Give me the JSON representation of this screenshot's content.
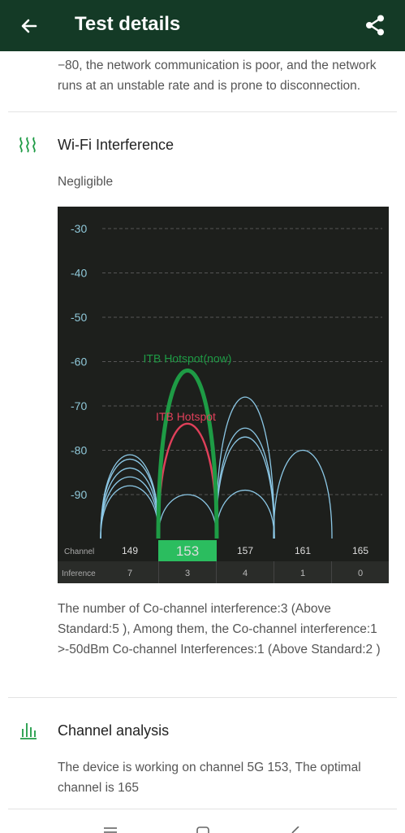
{
  "header": {
    "title": "Test details",
    "back_icon": "arrow-left-icon",
    "share_icon": "share-icon",
    "background": "#143a26"
  },
  "signal_note": "−80, the network communication is poor, and the network runs at an unstable rate and is prone to disconnection.",
  "interference": {
    "title": "Wi-Fi Interference",
    "icon": "wifi-waves-icon",
    "level": "Negligible",
    "description": "The number of Co-channel interference:3 (Above Standard:5 ), Among them, the Co-channel interference:1 >-50dBm Co-channel Interferences:1 (Above Standard:2 )"
  },
  "channel_analysis": {
    "title": "Channel analysis",
    "icon": "bar-chart-icon",
    "description": "The device is working on channel 5G 153, The optimal channel is 165"
  },
  "nav": {
    "menu_icon": "menu-icon",
    "home_icon": "home-icon",
    "back_icon": "nav-back-icon"
  },
  "chart_data": {
    "type": "line",
    "y_ticks": [
      -30,
      -40,
      -50,
      -60,
      -70,
      -80,
      -90
    ],
    "ylim": [
      -25,
      -100
    ],
    "row_labels": [
      "Channel",
      "Inference"
    ],
    "channels": [
      "149",
      "153",
      "157",
      "161",
      "165"
    ],
    "inference": [
      "7",
      "3",
      "4",
      "1",
      "0"
    ],
    "selected_channel": "153",
    "grid": true,
    "colors": {
      "current": "#1e9b45",
      "overlap": "#e0405a",
      "other": "#8cc8e6",
      "background": "#1d1f1c",
      "selected": "#2bbd5f"
    },
    "series": [
      {
        "name": "ITB Hotspot(now)",
        "center": 153,
        "peak": -62,
        "kind": "current"
      },
      {
        "name": "ITB Hotspot",
        "center": 153,
        "peak": -74,
        "kind": "overlap"
      },
      {
        "center": 149,
        "peak": -81,
        "kind": "other"
      },
      {
        "center": 149,
        "peak": -82,
        "kind": "other"
      },
      {
        "center": 149,
        "peak": -84,
        "kind": "other"
      },
      {
        "center": 149,
        "peak": -86,
        "kind": "other"
      },
      {
        "center": 149,
        "peak": -88,
        "kind": "other"
      },
      {
        "center": 153,
        "peak": -90,
        "kind": "other"
      },
      {
        "center": 157,
        "peak": -68,
        "kind": "other"
      },
      {
        "center": 157,
        "peak": -75,
        "kind": "other"
      },
      {
        "center": 157,
        "peak": -77,
        "kind": "other"
      },
      {
        "center": 157,
        "peak": -89,
        "kind": "other"
      },
      {
        "center": 161,
        "peak": -80,
        "kind": "other"
      }
    ]
  }
}
